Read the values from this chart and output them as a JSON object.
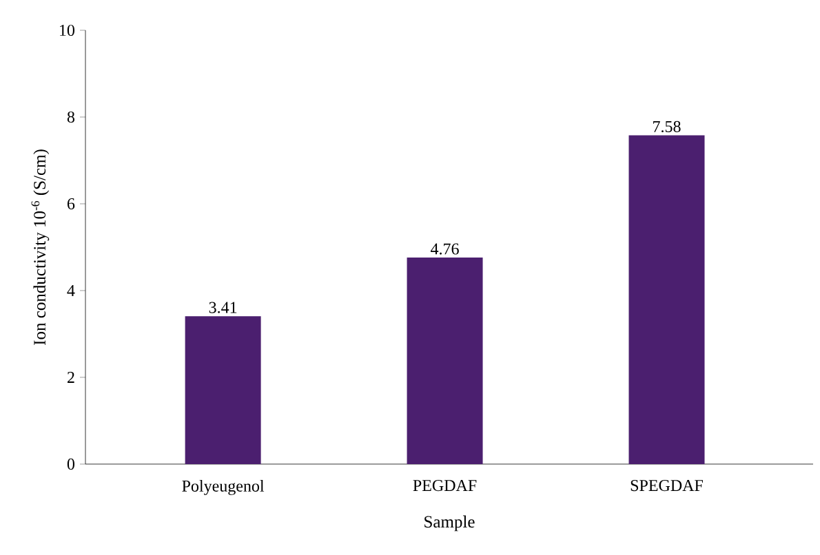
{
  "chart_data": {
    "type": "bar",
    "xlabel": "Sample",
    "ylabel": "Ion conductivity 10$^{-6}$ (S/cm)",
    "categories": [
      "Polyeugenol",
      "PEGDAF",
      "SPEGDAF"
    ],
    "values": [
      3.41,
      4.76,
      7.58
    ],
    "color": "#4b1f6f",
    "ylim": [
      0,
      10
    ],
    "yticks": [
      0,
      2,
      4,
      6,
      8,
      10
    ],
    "data_labels": true
  }
}
